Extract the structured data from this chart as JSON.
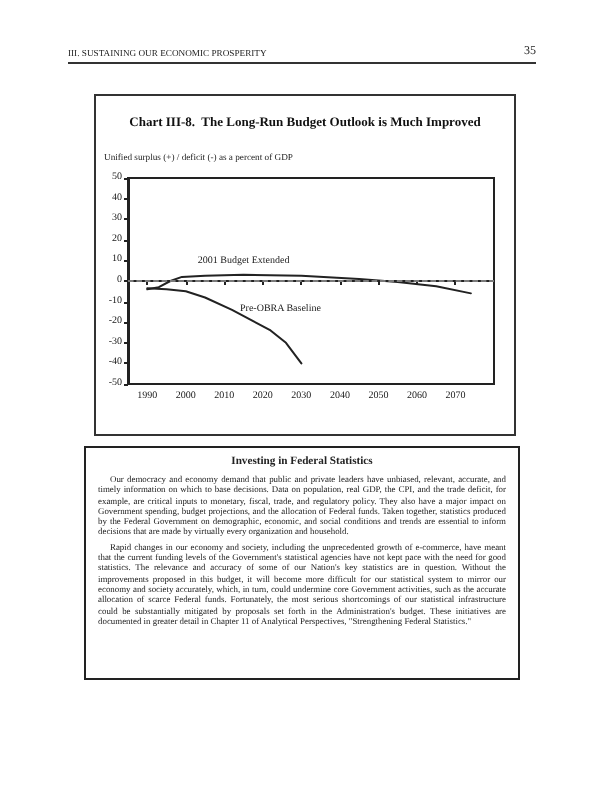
{
  "chart_data": {
    "type": "line",
    "title": "Chart III-8.  The Long-Run Budget Outlook is Much Improved",
    "ylabel": "Unified surplus (+) / deficit (-) as a percent of GDP",
    "marker": "none",
    "grid": false,
    "legend": false,
    "xlim": [
      1985,
      2080
    ],
    "xticks": [
      1990,
      2000,
      2010,
      2020,
      2030,
      2040,
      2050,
      2060,
      2070
    ],
    "ylim": [
      -50,
      50
    ],
    "yticks": [
      -50,
      -40,
      -30,
      -20,
      -10,
      0,
      10,
      20,
      30,
      40,
      50
    ],
    "series": [
      {
        "name": "2001 Budget Extended",
        "color": "#222222",
        "x": [
          1990,
          1993,
          1996,
          1999,
          2005,
          2015,
          2030,
          2045,
          2055,
          2065,
          2074
        ],
        "values": [
          -4,
          -3,
          0,
          2,
          2.5,
          3,
          2.5,
          1,
          -0.5,
          -2.5,
          -6
        ]
      },
      {
        "name": "Pre-OBRA Baseline",
        "color": "#222222",
        "x": [
          1990,
          1995,
          2000,
          2005,
          2012,
          2017,
          2022,
          2026,
          2030
        ],
        "values": [
          -3.5,
          -4,
          -5,
          -8,
          -14,
          -19,
          -24,
          -30,
          -40
        ]
      }
    ],
    "ref_lines": [
      {
        "axis": "y",
        "value": 0,
        "color": "#999999",
        "line_style": "dashed"
      }
    ],
    "annotations": [
      "III.  SUSTAINING OUR ECONOMIC PROSPERITY",
      "35",
      "Investing in Federal Statistics",
      "Our democracy and economy demand that public and private leaders have unbiased, relevant, accurate, and timely information on which to base decisions. Data on population, real GDP, the CPI, and the trade deficit, for example, are critical inputs to monetary, fiscal, trade, and regulatory policy. They also have a major impact on Government spending, budget projections, and the allocation of Federal funds. Taken together, statistics produced by the Federal Government on demographic, economic, and social conditions and trends are essential to inform decisions that are made by virtually every organization and household.",
      "Rapid changes in our economy and society, including the unprecedented growth of e-commerce, have meant that the current funding levels of the Government's statistical agencies have not kept pace with the need for good statistics. The relevance and accuracy of some of our Nation's key statistics are in question. Without the improvements proposed in this budget, it will become more difficult for our statistical system to mirror our economy and society accurately, which, in turn, could undermine core Government activities, such as the accurate allocation of scarce Federal funds. Fortunately, the most serious shortcomings of our statistical infrastructure could be substantially mitigated by proposals set forth in the Administration's budget. These initiatives are documented in greater detail in Chapter 11 of Analytical Perspectives, \"Strengthening Federal Statistics.\""
    ]
  }
}
